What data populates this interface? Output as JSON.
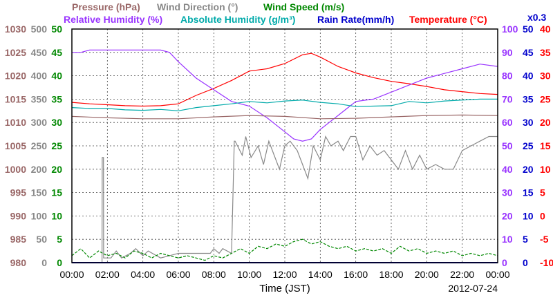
{
  "chart_data": {
    "type": "line",
    "title": "",
    "date": "2012-07-24",
    "xlabel": "Time (JST)",
    "xlim": [
      "00:00",
      "24:00"
    ],
    "x_ticks": [
      "00:00",
      "02:00",
      "04:00",
      "06:00",
      "08:00",
      "10:00",
      "12:00",
      "14:00",
      "16:00",
      "18:00",
      "20:00",
      "22:00",
      "00:00"
    ],
    "grid": true,
    "legend_placement": "top",
    "legend": [
      {
        "label": "Pressure (hPa)",
        "color": "#996666"
      },
      {
        "label": "Wind Direction (°)",
        "color": "#888888"
      },
      {
        "label": "Wind Speed (m/s)",
        "color": "#008800"
      },
      {
        "label": "Relative Humidity (%)",
        "color": "#9933ff"
      },
      {
        "label": "Absolute Humidity (g/m³)",
        "color": "#00aaaa"
      },
      {
        "label": "Rain Rate(mm/h)",
        "color": "#0000cc"
      },
      {
        "label": "Temperature (°C)",
        "color": "#ff0000"
      }
    ],
    "rain_scale_note": "x0.3",
    "axes": [
      {
        "id": "pressure",
        "side": "left",
        "color": "#996666",
        "min": 980,
        "max": 1030,
        "ticks": [
          "1030",
          "1025",
          "1020",
          "1015",
          "1010",
          "1005",
          "1000",
          "995",
          "990",
          "985",
          "980"
        ]
      },
      {
        "id": "wind_direction",
        "side": "left",
        "color": "#888888",
        "min": 0,
        "max": 500,
        "ticks": [
          "500",
          "450",
          "400",
          "350",
          "300",
          "250",
          "200",
          "150",
          "100",
          "50",
          "0"
        ]
      },
      {
        "id": "wind_speed",
        "side": "left",
        "color": "#008800",
        "min": 0,
        "max": 50,
        "ticks": [
          "50",
          "45",
          "40",
          "35",
          "30",
          "25",
          "20",
          "15",
          "10",
          "5",
          "0"
        ]
      },
      {
        "id": "humidity",
        "side": "right",
        "color": "#9933ff",
        "min": 0,
        "max": 100,
        "ticks": [
          "100",
          "90",
          "80",
          "70",
          "60",
          "50",
          "40",
          "30",
          "20",
          "10",
          "0"
        ]
      },
      {
        "id": "rain_abs",
        "side": "right",
        "color": "#0000cc",
        "min": 0,
        "max": 50,
        "ticks": [
          "50",
          "45",
          "40",
          "35",
          "30",
          "25",
          "20",
          "15",
          "10",
          "5",
          "0"
        ]
      },
      {
        "id": "temperature",
        "side": "right",
        "color": "#ff0000",
        "min": -10,
        "max": 40,
        "ticks": [
          "40",
          "35",
          "30",
          "25",
          "20",
          "15",
          "10",
          "5",
          "0",
          "-5",
          "-10"
        ]
      }
    ],
    "series": [
      {
        "name": "Temperature (°C)",
        "axis": "temperature",
        "color": "#ff0000",
        "style": "solid",
        "x": [
          0,
          1,
          2,
          3,
          4,
          5,
          6,
          7,
          8,
          9,
          10,
          11,
          12,
          13,
          13.5,
          14,
          15,
          16,
          17,
          18,
          19,
          20,
          21,
          22,
          23,
          24
        ],
        "y": [
          24.3,
          24.0,
          23.8,
          23.6,
          23.5,
          23.6,
          24.0,
          25.8,
          27.3,
          29.0,
          31.0,
          31.5,
          32.6,
          34.5,
          34.8,
          34.0,
          32.0,
          30.6,
          29.6,
          28.8,
          28.3,
          27.7,
          27.0,
          26.6,
          26.2,
          26.0
        ]
      },
      {
        "name": "Relative Humidity (%)",
        "axis": "humidity",
        "color": "#9933ff",
        "style": "solid",
        "x": [
          0,
          0.5,
          1,
          2,
          3,
          4,
          5,
          5.5,
          6,
          7,
          8,
          9,
          10,
          11,
          12,
          12.5,
          13,
          13.5,
          14,
          15,
          16,
          17,
          18,
          19,
          20,
          21,
          22,
          23,
          24
        ],
        "y": [
          90,
          90,
          91,
          91,
          91,
          91,
          91,
          90,
          86,
          79,
          74,
          69,
          67,
          62,
          56,
          53,
          52,
          53,
          57,
          63,
          69,
          70,
          73,
          76,
          79,
          81,
          83,
          85,
          84
        ]
      },
      {
        "name": "Absolute Humidity (g/m³)",
        "axis": "rain_abs",
        "color": "#00aaaa",
        "style": "solid",
        "x": [
          0,
          1,
          2,
          3,
          4,
          5,
          6,
          7,
          8,
          9,
          10,
          11,
          12,
          13,
          14,
          15,
          16,
          17,
          18,
          19,
          20,
          21,
          22,
          23,
          24
        ],
        "y": [
          33.2,
          33.0,
          33.0,
          32.7,
          32.6,
          32.8,
          32.5,
          33.2,
          33.6,
          34.0,
          34.5,
          34.2,
          34.6,
          34.8,
          34.3,
          34.0,
          33.4,
          33.5,
          33.6,
          34.5,
          34.2,
          34.6,
          34.8,
          35.0,
          35.0
        ]
      },
      {
        "name": "Pressure (hPa)",
        "axis": "pressure",
        "color": "#996666",
        "style": "solid",
        "x": [
          0,
          2,
          4,
          6,
          8,
          10,
          12,
          14,
          16,
          18,
          20,
          22,
          24
        ],
        "y": [
          1011.3,
          1011.0,
          1010.8,
          1010.8,
          1011.2,
          1011.5,
          1011.3,
          1010.8,
          1010.9,
          1011.2,
          1011.5,
          1011.6,
          1011.5
        ]
      },
      {
        "name": "Wind Direction (°)",
        "axis": "wind_direction",
        "color": "#888888",
        "style": "solid",
        "x": [
          0,
          1.7,
          1.71,
          1.78,
          1.79,
          2.2,
          2.5,
          2.8,
          3.3,
          3.6,
          4.0,
          4.3,
          5.0,
          5.5,
          6.0,
          7.0,
          7.8,
          8.0,
          8.3,
          8.5,
          9.0,
          9.15,
          9.2,
          9.6,
          9.8,
          10.1,
          10.5,
          10.8,
          11.1,
          11.4,
          11.7,
          12.0,
          12.3,
          12.7,
          13.0,
          13.3,
          13.6,
          14.0,
          14.3,
          14.6,
          15.0,
          15.3,
          15.7,
          16.0,
          16.4,
          16.8,
          17.2,
          17.6,
          18.0,
          18.4,
          18.8,
          19.2,
          19.6,
          20.0,
          20.5,
          21.0,
          21.5,
          22.0,
          22.5,
          23.0,
          23.5,
          24.0
        ],
        "y": [
          0,
          0,
          225,
          225,
          10,
          10,
          25,
          10,
          20,
          30,
          15,
          25,
          10,
          15,
          20,
          20,
          20,
          30,
          20,
          30,
          20,
          260,
          260,
          230,
          270,
          225,
          250,
          210,
          260,
          230,
          200,
          250,
          260,
          240,
          210,
          180,
          250,
          220,
          270,
          250,
          260,
          240,
          270,
          270,
          220,
          250,
          230,
          240,
          220,
          200,
          240,
          200,
          230,
          200,
          210,
          200,
          200,
          240,
          250,
          260,
          270,
          270
        ]
      },
      {
        "name": "Wind Speed (m/s)",
        "axis": "wind_speed",
        "color": "#008800",
        "style": "dashed",
        "x": [
          0,
          0.5,
          1,
          1.5,
          2,
          2.5,
          3,
          3.5,
          4,
          4.5,
          5,
          5.5,
          6,
          6.5,
          7,
          7.5,
          8,
          8.5,
          9,
          9.5,
          10,
          10.5,
          11,
          11.5,
          12,
          12.5,
          13,
          13.5,
          14,
          14.5,
          15,
          15.5,
          16,
          16.5,
          17,
          17.5,
          18,
          18.5,
          19,
          19.5,
          20,
          20.5,
          21,
          21.5,
          22,
          22.5,
          23,
          23.5,
          24
        ],
        "y": [
          1.5,
          3,
          1,
          2.5,
          1.5,
          2,
          1,
          2.5,
          2,
          1,
          2,
          1.5,
          1,
          1.5,
          1,
          0.5,
          1.5,
          1,
          2,
          3,
          2,
          3.5,
          3,
          4,
          3.5,
          4.5,
          5,
          4,
          4.5,
          3.5,
          3,
          3.5,
          2.5,
          3,
          2.5,
          3,
          2,
          3.5,
          2.5,
          3,
          2,
          2.5,
          2,
          2.5,
          1.5,
          2,
          1.5,
          2,
          1.5
        ]
      },
      {
        "name": "Rain Rate(mm/h)",
        "axis": "rain_abs",
        "color": "#0000cc",
        "style": "solid",
        "x": [
          0,
          24
        ],
        "y": [
          0,
          0
        ]
      }
    ]
  }
}
